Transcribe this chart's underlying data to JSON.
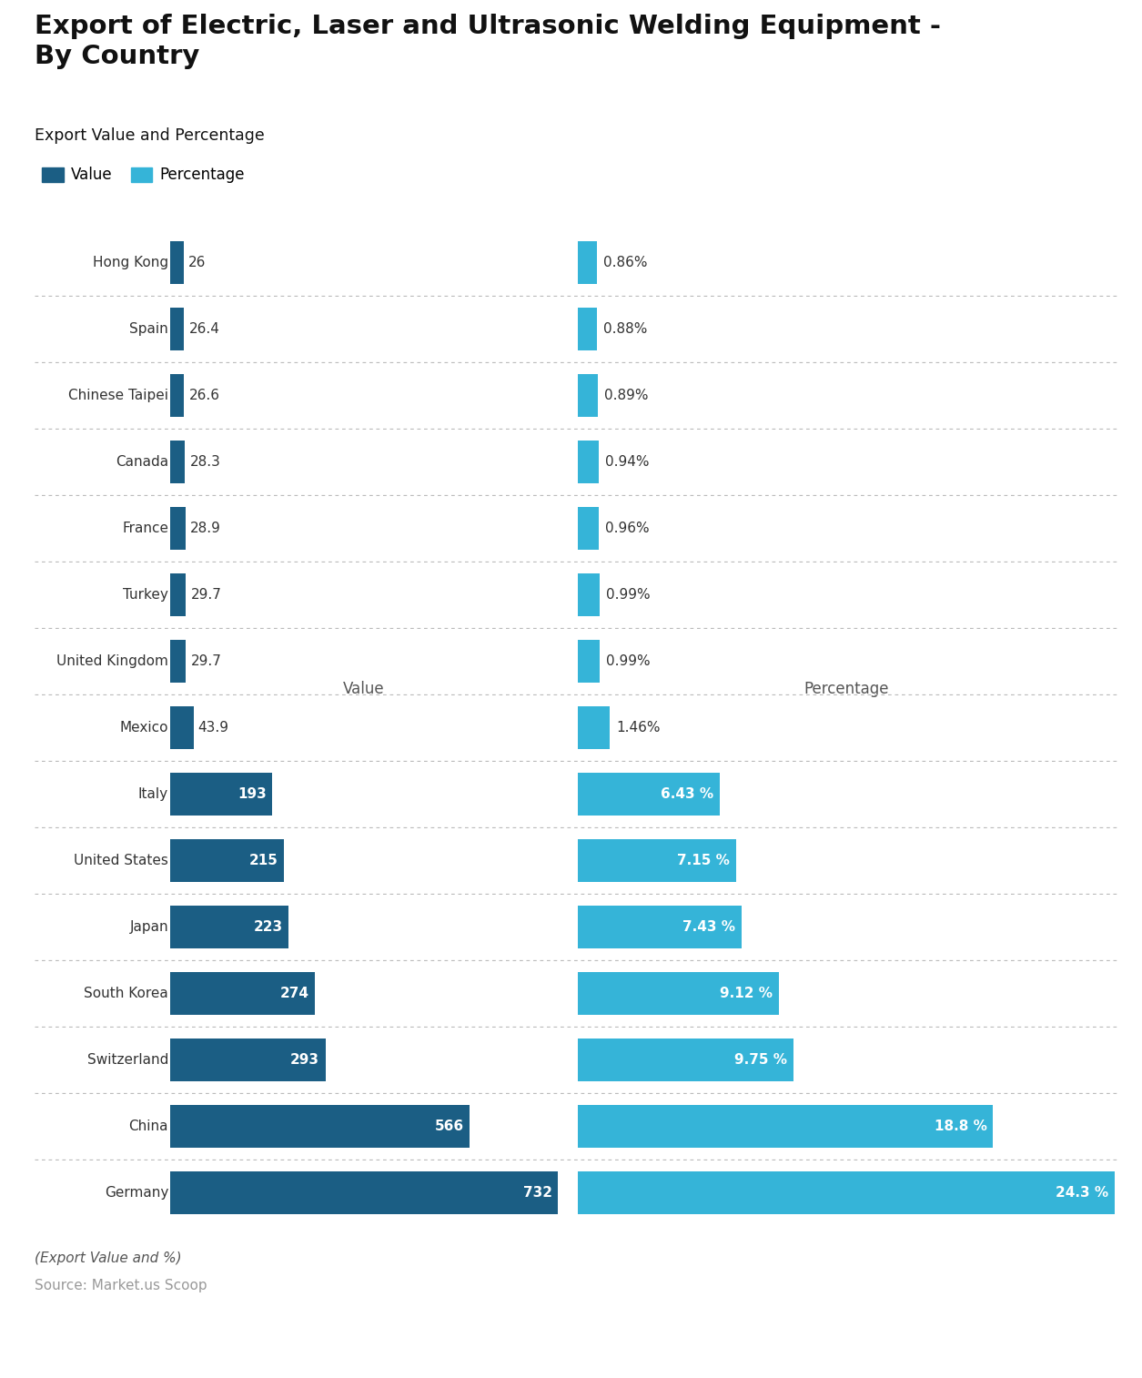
{
  "title": "Export of Electric, Laser and Ultrasonic Welding Equipment -\nBy Country",
  "subtitle": "Export Value and Percentage",
  "footnote": "(Export Value and %)",
  "source": "Source: Market.us Scoop",
  "legend": [
    "Value",
    "Percentage"
  ],
  "col_headers": [
    "Value",
    "Percentage"
  ],
  "countries": [
    "Hong Kong",
    "Spain",
    "Chinese Taipei",
    "Canada",
    "France",
    "Turkey",
    "United Kingdom",
    "Mexico",
    "Italy",
    "United States",
    "Japan",
    "South Korea",
    "Switzerland",
    "China",
    "Germany"
  ],
  "values": [
    26,
    26.4,
    26.6,
    28.3,
    28.9,
    29.7,
    29.7,
    43.9,
    193,
    215,
    223,
    274,
    293,
    566,
    732
  ],
  "percentages": [
    0.86,
    0.88,
    0.89,
    0.94,
    0.96,
    0.99,
    0.99,
    1.46,
    6.43,
    7.15,
    7.43,
    9.12,
    9.75,
    18.8,
    24.3
  ],
  "pct_labels": [
    "0.86%",
    "0.88%",
    "0.89%",
    "0.94%",
    "0.96%",
    "0.99%",
    "0.99%",
    "1.46%",
    "6.43 %",
    "7.15 %",
    "7.43 %",
    "9.12 %",
    "9.75 %",
    "18.8 %",
    "24.3 %"
  ],
  "value_labels": [
    "26",
    "26.4",
    "26.6",
    "28.3",
    "28.9",
    "29.7",
    "29.7",
    "43.9",
    "193",
    "215",
    "223",
    "274",
    "293",
    "566",
    "732"
  ],
  "dark_blue": "#1b5e84",
  "light_blue": "#35b4d8",
  "white_bg": "#ffffff",
  "row_bg_light": "#ebebeb",
  "row_bg_white": "#f7f7f7",
  "title_color": "#111111",
  "country_label_color": "#333333",
  "source_color": "#999999",
  "header_color": "#555555",
  "max_value": 732,
  "max_pct": 24.3,
  "large_threshold": 0.14
}
